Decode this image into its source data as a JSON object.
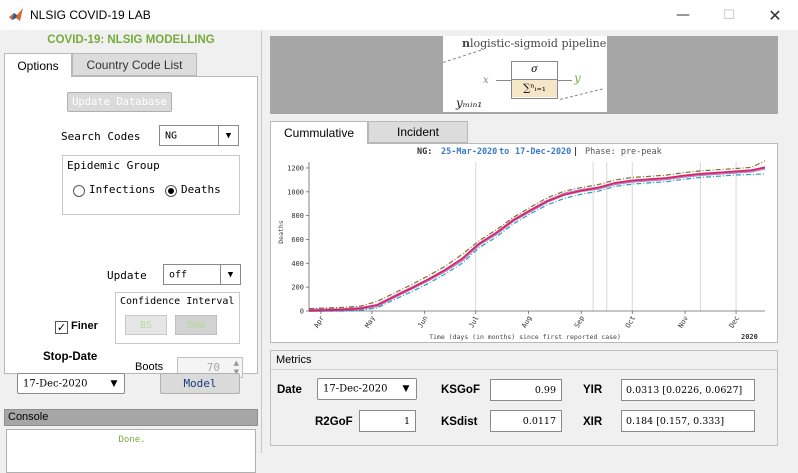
{
  "window": {
    "title": "NLSIG COVID-19 LAB",
    "icon": "matlab-icon",
    "min_glyph": "—",
    "max_glyph": "☐",
    "close_glyph": "✕"
  },
  "left": {
    "header": "COVID-19: NLSIG MODELLING",
    "tabs": [
      {
        "label": "Options",
        "active": true
      },
      {
        "label": "Country Code List",
        "active": false
      }
    ],
    "update_database_label": "Update Database",
    "search_codes_label": "Search Codes",
    "search_codes_value": "NG",
    "epidemic_group": {
      "title": "Epidemic Group",
      "options": [
        {
          "label": "Infections",
          "selected": false
        },
        {
          "label": "Deaths",
          "selected": true
        }
      ]
    },
    "update_label": "Update",
    "update_value": "off",
    "confidence_interval": {
      "title": "Confidence Interval",
      "bs_label": "BS",
      "dkw_label": "DKW"
    },
    "finer_label": "Finer",
    "finer_checked": true,
    "boots_label": "Boots",
    "boots_value": "70",
    "stop_date_label": "Stop-Date",
    "stop_date_value": "17-Dec-2020",
    "model_label": "Model",
    "console_title": "Console",
    "console_text": "Done."
  },
  "banner": {
    "title_bold": "n",
    "title_rest": "logistic-sigmoid pipeline",
    "x_label": "x",
    "sigma_label": "σ",
    "sum_label": "∑ⁿᵢ₌₁",
    "y_label": "y",
    "ymin_label": "yₘᵢₙ₁"
  },
  "plot_tabs": [
    {
      "label": "Cummulative",
      "active": true
    },
    {
      "label": "Incident",
      "active": false
    }
  ],
  "chart_header": {
    "code": "NG:",
    "start": "25-Mar-2020",
    "to": "to",
    "end": "17-Dec-2020",
    "sep": "|",
    "phase": "Phase: pre-peak"
  },
  "chart_data": {
    "type": "line",
    "xlabel": "Time (days (in months) since first reported case)",
    "ylabel": "Deaths",
    "year_label": "2020",
    "x_tick_labels": [
      "Apr",
      "May",
      "Jun",
      "Jul",
      "Aug",
      "Sep",
      "Oct",
      "Nov",
      "Dec"
    ],
    "x_ticks": [
      7,
      37,
      68,
      98,
      129,
      160,
      190,
      221,
      251
    ],
    "y_ticks": [
      0,
      200,
      400,
      600,
      800,
      1000,
      1200
    ],
    "xlim": [
      0,
      268
    ],
    "ylim": [
      0,
      1250
    ],
    "vlines": [
      98,
      167,
      175,
      190,
      230,
      251
    ],
    "x": [
      0,
      10,
      20,
      30,
      40,
      50,
      60,
      70,
      80,
      90,
      100,
      110,
      120,
      130,
      140,
      150,
      160,
      170,
      180,
      190,
      200,
      210,
      220,
      230,
      240,
      250,
      260,
      268
    ],
    "series": [
      {
        "role": "data",
        "color": "#7b1fa2",
        "values": [
          5,
          8,
          12,
          20,
          45,
          120,
          190,
          260,
          340,
          430,
          560,
          650,
          760,
          840,
          920,
          980,
          1010,
          1030,
          1070,
          1090,
          1100,
          1110,
          1130,
          1145,
          1155,
          1165,
          1175,
          1200
        ]
      },
      {
        "role": "fit",
        "color": "#e0205a",
        "values": [
          5,
          8,
          12,
          22,
          50,
          120,
          190,
          265,
          345,
          440,
          565,
          655,
          760,
          845,
          920,
          975,
          1010,
          1035,
          1075,
          1095,
          1105,
          1115,
          1135,
          1150,
          1160,
          1170,
          1180,
          1205
        ]
      },
      {
        "role": "upper",
        "color": "#8c6a2a",
        "values": [
          20,
          25,
          30,
          40,
          80,
          150,
          220,
          295,
          375,
          475,
          590,
          680,
          785,
          870,
          950,
          1005,
          1035,
          1060,
          1100,
          1120,
          1130,
          1140,
          1160,
          1175,
          1185,
          1195,
          1205,
          1260
        ]
      },
      {
        "role": "lower",
        "color": "#2aa0b8",
        "values": [
          0,
          0,
          0,
          5,
          25,
          95,
          160,
          230,
          310,
          400,
          530,
          620,
          730,
          815,
          890,
          945,
          980,
          1005,
          1045,
          1065,
          1075,
          1085,
          1105,
          1120,
          1130,
          1140,
          1145,
          1150
        ]
      }
    ]
  },
  "metrics": {
    "title": "Metrics",
    "date_label": "Date",
    "date_value": "17-Dec-2020",
    "ksgof_label": "KSGoF",
    "ksgof_value": "0.99",
    "yir_label": "YIR",
    "yir_value": "0.0313 [0.0226, 0.0627]",
    "r2gof_label": "R2GoF",
    "r2gof_value": "1",
    "ksdist_label": "KSdist",
    "ksdist_value": "0.0117",
    "xir_label": "XIR",
    "xir_value": "0.184 [0.157, 0.333]"
  },
  "colors": {
    "accent_green": "#77ab3c",
    "date_blue": "#3a78c8",
    "panel_gray": "#a6a6a6"
  }
}
